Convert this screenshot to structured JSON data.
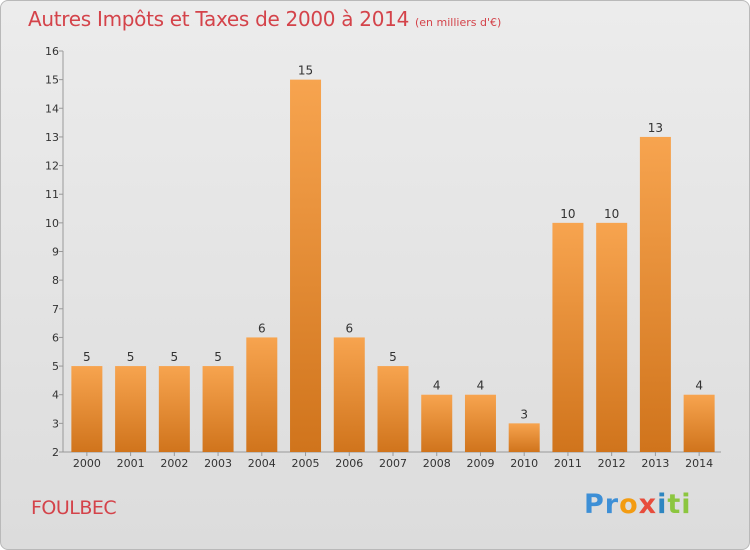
{
  "title": "Autres Impôts et Taxes de 2000 à 2014",
  "unit_label": "(en milliers d'€)",
  "commune": "FOULBEC",
  "logo": {
    "text": "Proxiti",
    "parts": [
      "Pr",
      "o",
      "x",
      "i",
      "ti"
    ]
  },
  "colors": {
    "bar_light": "#f7a44f",
    "bar_dark": "#d0741c",
    "title": "#d4434a"
  },
  "chart_data": {
    "type": "bar",
    "title": "Autres Impôts et Taxes de 2000 à 2014",
    "xlabel": "",
    "ylabel": "",
    "categories": [
      "2000",
      "2001",
      "2002",
      "2003",
      "2004",
      "2005",
      "2006",
      "2007",
      "2008",
      "2009",
      "2010",
      "2011",
      "2012",
      "2013",
      "2014"
    ],
    "values": [
      5,
      5,
      5,
      5,
      6,
      15,
      6,
      5,
      4,
      4,
      3,
      10,
      10,
      13,
      4
    ],
    "ylim": [
      2,
      16
    ],
    "yticks": [
      2,
      3,
      4,
      5,
      6,
      7,
      8,
      9,
      10,
      11,
      12,
      13,
      14,
      15,
      16
    ],
    "grid": false,
    "legend": "none"
  }
}
